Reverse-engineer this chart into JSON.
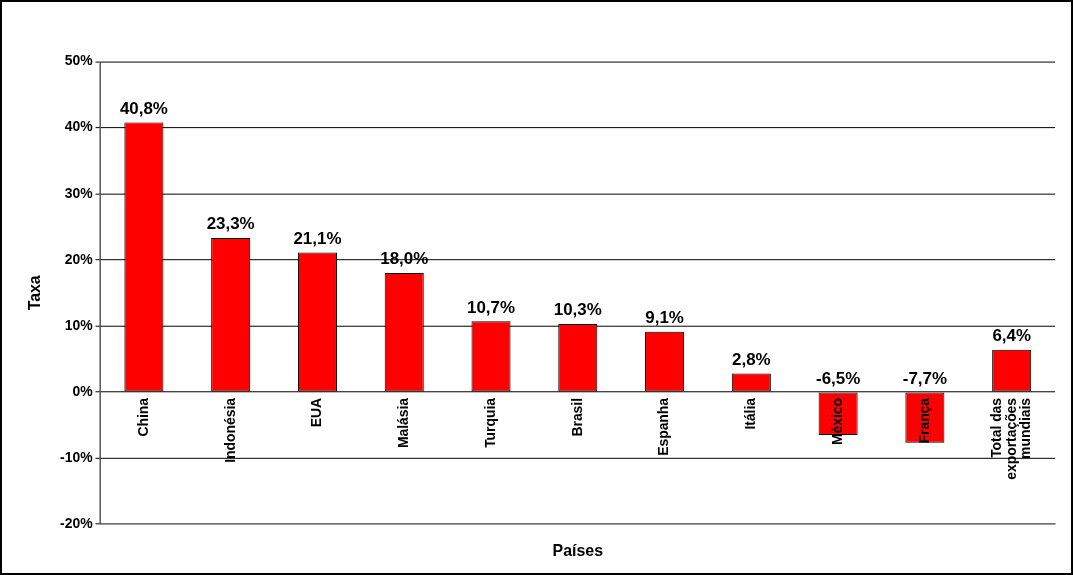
{
  "chart_data": {
    "type": "bar",
    "xlabel": "Países",
    "ylabel": "Taxa",
    "categories": [
      "China",
      "Indonésia",
      "EUA",
      "Malásia",
      "Turquia",
      "Brasil",
      "Espanha",
      "Itália",
      "México",
      "França",
      "Total das exportações mundiais"
    ],
    "values": [
      40.8,
      23.3,
      21.1,
      18.0,
      10.7,
      10.3,
      9.1,
      2.8,
      -6.5,
      -7.7,
      6.4
    ],
    "value_labels": [
      "40,8%",
      "23,3%",
      "21,1%",
      "18,0%",
      "10,7%",
      "10,3%",
      "9,1%",
      "2,8%",
      "-6,5%",
      "-7,7%",
      "6,4%"
    ],
    "color": "#ff0000",
    "ylim": [
      -20,
      50
    ],
    "yticks": [
      {
        "value": -20,
        "label": "-20%"
      },
      {
        "value": -10,
        "label": "-10%"
      },
      {
        "value": 0,
        "label": "0%"
      },
      {
        "value": 10,
        "label": "10%"
      },
      {
        "value": 20,
        "label": "20%"
      },
      {
        "value": 30,
        "label": "30%"
      },
      {
        "value": 40,
        "label": "40%"
      },
      {
        "value": 50,
        "label": "50%"
      }
    ],
    "grid": "y",
    "legend": false
  }
}
